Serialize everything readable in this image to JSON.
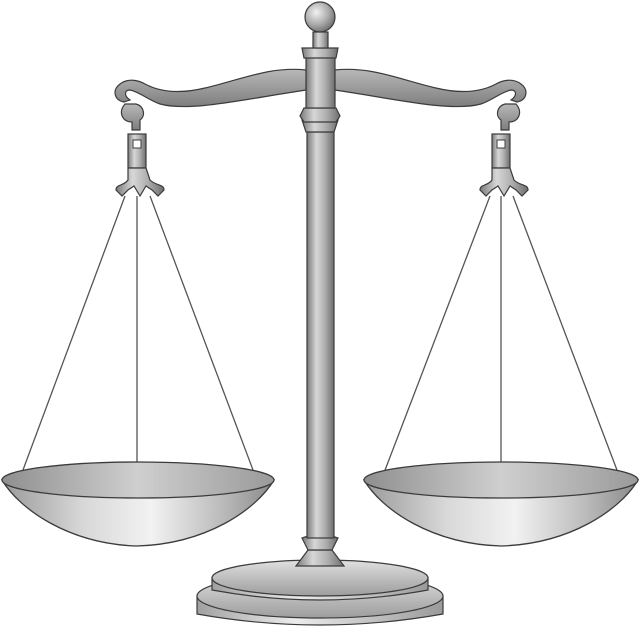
{
  "image": {
    "subject": "balance-scale-icon",
    "background_color": "#ffffff",
    "metal_colors": {
      "highlight": "#d9d9d9",
      "mid": "#a9a9a9",
      "shadow": "#6f6f6f",
      "outline": "#3b3b3b"
    },
    "pans": {
      "left": {
        "state": "balanced"
      },
      "right": {
        "state": "balanced"
      }
    }
  }
}
